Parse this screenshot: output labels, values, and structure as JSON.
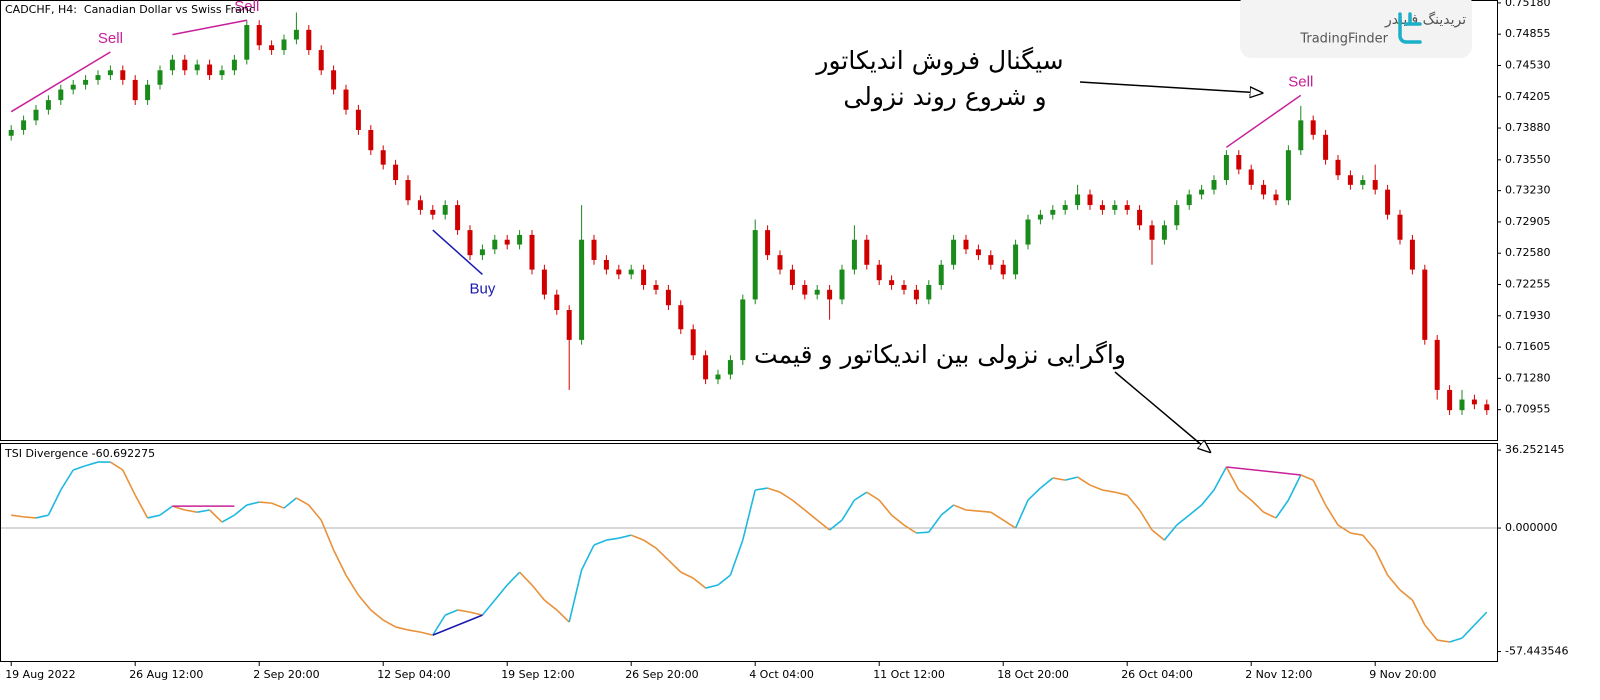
{
  "header": {
    "symbol": "CADCHF, H4:  Canadian Dollar vs Swiss Franc"
  },
  "chart_data": [
    {
      "type": "candlestick",
      "up_color": "#1a8a1a",
      "down_color": "#d10000",
      "categories": [
        "19 Aug 2022",
        null,
        null,
        null,
        null,
        null,
        null,
        null,
        null,
        null,
        "26 Aug 12:00",
        null,
        null,
        null,
        null,
        null,
        null,
        null,
        null,
        null,
        "2 Sep 20:00",
        null,
        null,
        null,
        null,
        null,
        null,
        null,
        null,
        null,
        "12 Sep 04:00",
        null,
        null,
        null,
        null,
        null,
        null,
        null,
        null,
        null,
        "19 Sep 12:00",
        null,
        null,
        null,
        null,
        null,
        null,
        null,
        null,
        null,
        "26 Sep 20:00",
        null,
        null,
        null,
        null,
        null,
        null,
        null,
        null,
        null,
        "4 Oct 04:00",
        null,
        null,
        null,
        null,
        null,
        null,
        null,
        null,
        null,
        "11 Oct 12:00",
        null,
        null,
        null,
        null,
        null,
        null,
        null,
        null,
        null,
        "18 Oct 20:00",
        null,
        null,
        null,
        null,
        null,
        null,
        null,
        null,
        null,
        "26 Oct 04:00",
        null,
        null,
        null,
        null,
        null,
        null,
        null,
        null,
        null,
        "2 Nov 12:00",
        null,
        null,
        null,
        null,
        null,
        null,
        null,
        null,
        null,
        "9 Nov 20:00",
        null,
        null,
        null,
        null,
        null,
        null,
        null,
        null,
        null
      ],
      "open": [
        0.738,
        0.7386,
        0.7396,
        0.7407,
        0.7417,
        0.7428,
        0.7433,
        0.7438,
        0.7443,
        0.7448,
        0.7438,
        0.7417,
        0.7433,
        0.7448,
        0.7459,
        0.7448,
        0.7454,
        0.7443,
        0.7448,
        0.7459,
        0.7495,
        0.7474,
        0.7469,
        0.748,
        0.749,
        0.7469,
        0.7448,
        0.7428,
        0.7407,
        0.7386,
        0.7365,
        0.735,
        0.7334,
        0.7313,
        0.7303,
        0.7298,
        0.7308,
        0.7282,
        0.7256,
        0.7262,
        0.7272,
        0.7267,
        0.7277,
        0.7241,
        0.7215,
        0.7199,
        0.7168,
        0.7272,
        0.7251,
        0.7241,
        0.7236,
        0.7241,
        0.7225,
        0.722,
        0.7204,
        0.7179,
        0.7152,
        0.7127,
        0.7132,
        0.7147,
        0.721,
        0.7282,
        0.7256,
        0.7241,
        0.7225,
        0.7215,
        0.722,
        0.721,
        0.7241,
        0.7272,
        0.7246,
        0.723,
        0.7225,
        0.722,
        0.721,
        0.7225,
        0.7246,
        0.7272,
        0.7262,
        0.7256,
        0.7246,
        0.7236,
        0.7267,
        0.7293,
        0.7298,
        0.7303,
        0.7308,
        0.7319,
        0.7308,
        0.7303,
        0.7308,
        0.7303,
        0.7287,
        0.7272,
        0.7287,
        0.7308,
        0.7319,
        0.7324,
        0.7334,
        0.736,
        0.7345,
        0.7329,
        0.7319,
        0.7313,
        0.7365,
        0.7396,
        0.7381,
        0.7355,
        0.7339,
        0.7329,
        0.7334,
        0.7324,
        0.7298,
        0.7272,
        0.7241,
        0.7168,
        0.7116,
        0.7095,
        0.7106,
        0.7101
      ],
      "high": [
        0.7391,
        0.7401,
        0.7412,
        0.7422,
        0.7433,
        0.7438,
        0.7443,
        0.7448,
        0.7453,
        0.7453,
        0.7443,
        0.7438,
        0.7453,
        0.7464,
        0.7464,
        0.7459,
        0.7459,
        0.7453,
        0.7464,
        0.75,
        0.75,
        0.7479,
        0.7485,
        0.7508,
        0.7495,
        0.7474,
        0.7453,
        0.7433,
        0.7412,
        0.7391,
        0.737,
        0.7355,
        0.7339,
        0.7318,
        0.7308,
        0.7313,
        0.7313,
        0.7287,
        0.7267,
        0.7277,
        0.7277,
        0.7282,
        0.7282,
        0.7246,
        0.722,
        0.7204,
        0.7308,
        0.7277,
        0.7256,
        0.7246,
        0.7246,
        0.7246,
        0.723,
        0.7225,
        0.7209,
        0.7184,
        0.7157,
        0.7137,
        0.7152,
        0.7215,
        0.7293,
        0.7287,
        0.7261,
        0.7246,
        0.723,
        0.7225,
        0.7225,
        0.7246,
        0.7287,
        0.7277,
        0.7251,
        0.7235,
        0.723,
        0.7225,
        0.723,
        0.7251,
        0.7277,
        0.7277,
        0.7267,
        0.7261,
        0.7251,
        0.7272,
        0.7298,
        0.7303,
        0.7308,
        0.7313,
        0.7329,
        0.7324,
        0.7313,
        0.7313,
        0.7313,
        0.7308,
        0.7292,
        0.7292,
        0.7313,
        0.7324,
        0.7329,
        0.7339,
        0.7365,
        0.7365,
        0.735,
        0.7334,
        0.7324,
        0.737,
        0.7411,
        0.7401,
        0.7386,
        0.736,
        0.7344,
        0.7339,
        0.735,
        0.7329,
        0.7303,
        0.7277,
        0.7246,
        0.7173,
        0.7121,
        0.7116,
        0.7111,
        0.7106
      ],
      "low": [
        0.7375,
        0.7381,
        0.7391,
        0.7402,
        0.7412,
        0.7423,
        0.7428,
        0.7433,
        0.7438,
        0.7433,
        0.7412,
        0.7412,
        0.7428,
        0.7443,
        0.7443,
        0.7443,
        0.7438,
        0.7438,
        0.7443,
        0.7454,
        0.7469,
        0.7464,
        0.7464,
        0.7475,
        0.7464,
        0.7443,
        0.7423,
        0.7402,
        0.7381,
        0.736,
        0.7345,
        0.7329,
        0.7308,
        0.7298,
        0.7293,
        0.7293,
        0.7277,
        0.7251,
        0.7251,
        0.7257,
        0.7262,
        0.7262,
        0.7236,
        0.721,
        0.7194,
        0.7116,
        0.7163,
        0.7246,
        0.7236,
        0.7231,
        0.7231,
        0.722,
        0.7215,
        0.7199,
        0.7174,
        0.7147,
        0.7122,
        0.7122,
        0.7127,
        0.7142,
        0.7205,
        0.7251,
        0.7236,
        0.722,
        0.721,
        0.721,
        0.7189,
        0.7205,
        0.7236,
        0.7241,
        0.7225,
        0.722,
        0.7215,
        0.7205,
        0.7205,
        0.722,
        0.7241,
        0.7257,
        0.7251,
        0.7241,
        0.7231,
        0.7231,
        0.7262,
        0.7288,
        0.7293,
        0.7298,
        0.7303,
        0.7303,
        0.7298,
        0.7298,
        0.7298,
        0.7282,
        0.7246,
        0.7267,
        0.7282,
        0.7303,
        0.7314,
        0.7319,
        0.7329,
        0.734,
        0.7324,
        0.7314,
        0.7308,
        0.7308,
        0.736,
        0.7376,
        0.735,
        0.7334,
        0.7324,
        0.7324,
        0.7319,
        0.7293,
        0.7267,
        0.7236,
        0.7163,
        0.7106,
        0.709,
        0.709,
        0.7096,
        0.709
      ],
      "close": [
        0.7386,
        0.7396,
        0.7407,
        0.7417,
        0.7428,
        0.7433,
        0.7438,
        0.7443,
        0.7448,
        0.7438,
        0.7417,
        0.7433,
        0.7448,
        0.7459,
        0.7448,
        0.7454,
        0.7443,
        0.7448,
        0.7459,
        0.7495,
        0.7474,
        0.7469,
        0.748,
        0.749,
        0.7469,
        0.7448,
        0.7428,
        0.7407,
        0.7386,
        0.7365,
        0.735,
        0.7334,
        0.7313,
        0.7303,
        0.7298,
        0.7308,
        0.7282,
        0.7256,
        0.7262,
        0.7272,
        0.7267,
        0.7277,
        0.7241,
        0.7215,
        0.7199,
        0.7168,
        0.7272,
        0.7251,
        0.7241,
        0.7236,
        0.7241,
        0.7225,
        0.722,
        0.7204,
        0.7179,
        0.7152,
        0.7127,
        0.7132,
        0.7147,
        0.721,
        0.7282,
        0.7256,
        0.7241,
        0.7225,
        0.7215,
        0.722,
        0.721,
        0.7241,
        0.7272,
        0.7246,
        0.723,
        0.7225,
        0.722,
        0.721,
        0.7225,
        0.7246,
        0.7272,
        0.7262,
        0.7256,
        0.7246,
        0.7236,
        0.7267,
        0.7293,
        0.7298,
        0.7303,
        0.7308,
        0.7319,
        0.7308,
        0.7303,
        0.7308,
        0.7303,
        0.7287,
        0.7272,
        0.7287,
        0.7308,
        0.7319,
        0.7324,
        0.7334,
        0.736,
        0.7345,
        0.7329,
        0.7319,
        0.7313,
        0.7365,
        0.7396,
        0.7381,
        0.7355,
        0.7339,
        0.7329,
        0.7334,
        0.7324,
        0.7298,
        0.7272,
        0.7241,
        0.7168,
        0.7116,
        0.7095,
        0.7106,
        0.7101,
        0.7095
      ],
      "ylim": [
        0.7064,
        0.7521
      ],
      "yticks": [
        {
          "value": 0.7518,
          "label": "0.75180"
        },
        0.74855,
        {
          "value": 0.7453,
          "label": "0.74530"
        },
        0.74205,
        {
          "value": 0.7388,
          "label": "0.73880"
        },
        {
          "value": 0.7355,
          "label": "0.73550"
        },
        {
          "value": 0.7323,
          "label": "0.73230"
        },
        0.72905,
        {
          "value": 0.7258,
          "label": "0.72580"
        },
        0.72255,
        {
          "value": 0.7193,
          "label": "0.71930"
        },
        0.71605,
        {
          "value": 0.7128,
          "label": "0.71280"
        },
        0.70955
      ],
      "signals": [
        {
          "label": "Sell",
          "color": "#c8209a",
          "position": "above",
          "from": 0,
          "to": 8,
          "price": [
            0.7405,
            0.7467
          ]
        },
        {
          "label": "Sell",
          "color": "#c8209a",
          "position": "above",
          "from": 13,
          "to": 19,
          "price": [
            0.7485,
            0.75
          ]
        },
        {
          "label": "Buy",
          "color": "#1a1ab0",
          "position": "below",
          "from": 34,
          "to": 38,
          "price": [
            0.7282,
            0.7236
          ]
        },
        {
          "label": "Sell",
          "color": "#c8209a",
          "position": "above",
          "from": 98,
          "to": 104,
          "price": [
            0.7368,
            0.7422
          ]
        }
      ]
    },
    {
      "type": "line",
      "title": "TSI Divergence -60.692275",
      "up_color": "#1eb8e0",
      "down_color": "#e8913a",
      "values": [
        6,
        5.2,
        4.7,
        6,
        17.7,
        27,
        29,
        30.7,
        30.7,
        27,
        15.3,
        4.7,
        6,
        10.2,
        8.4,
        7.4,
        8.4,
        2.8,
        6,
        10.7,
        12.1,
        11.6,
        9.3,
        14,
        10.7,
        3.7,
        -10.2,
        -21.9,
        -31.2,
        -38.1,
        -42.8,
        -46,
        -47.4,
        -48.4,
        -49.8,
        -40.5,
        -38.1,
        -39.1,
        -40.5,
        -33.5,
        -26.5,
        -20.5,
        -26.5,
        -33.5,
        -38.1,
        -43.7,
        -19.5,
        -7.9,
        -5.6,
        -4.7,
        -3.3,
        -5.6,
        -9.3,
        -14.9,
        -20.5,
        -23.3,
        -27.9,
        -26.5,
        -21.9,
        -5.6,
        17.7,
        18.6,
        16.7,
        13,
        8.4,
        3.7,
        -0.9,
        3.7,
        13,
        16.7,
        13,
        6,
        1.4,
        -2.3,
        -1.9,
        6,
        10.7,
        8.4,
        7.9,
        7.4,
        3.7,
        0,
        13,
        18.6,
        23.3,
        22.3,
        23.7,
        20,
        17.7,
        16.7,
        15.3,
        8.4,
        -0.9,
        -5.6,
        1.4,
        6,
        10.7,
        17.7,
        28.4,
        17.7,
        13,
        7.4,
        4.7,
        13,
        24.7,
        22.3,
        10.7,
        1.4,
        -2.3,
        -3.3,
        -10.2,
        -21.9,
        -28.8,
        -33.5,
        -45.1,
        -52.1,
        -53,
        -51.2,
        -45.1,
        -39.1
      ],
      "ylim": [
        -62.3,
        39.1
      ],
      "yticks": [
        36.252145,
        {
          "value": 0,
          "label": "0.000000"
        },
        -57.443546
      ],
      "zero_line": true,
      "divergences": [
        {
          "color": "#c8209a",
          "from": 13,
          "to": 18,
          "values": [
            10.2,
            10.2
          ]
        },
        {
          "color": "#1a1ab0",
          "from": 34,
          "to": 38,
          "values": [
            -49.8,
            -40.5
          ]
        },
        {
          "color": "#c8209a",
          "from": 98,
          "to": 104,
          "values": [
            28.4,
            24.7
          ]
        }
      ]
    }
  ],
  "annotations": {
    "signal_note": [
      "سیگنال فروش اندیکاتور",
      "و شروع روند نزولی"
    ],
    "divergence_note": "واگرایی نزولی بین اندیکاتور و قیمت"
  },
  "logo": {
    "name_fa": "تریدینگ فایندر",
    "name_en": "TradingFinder"
  }
}
